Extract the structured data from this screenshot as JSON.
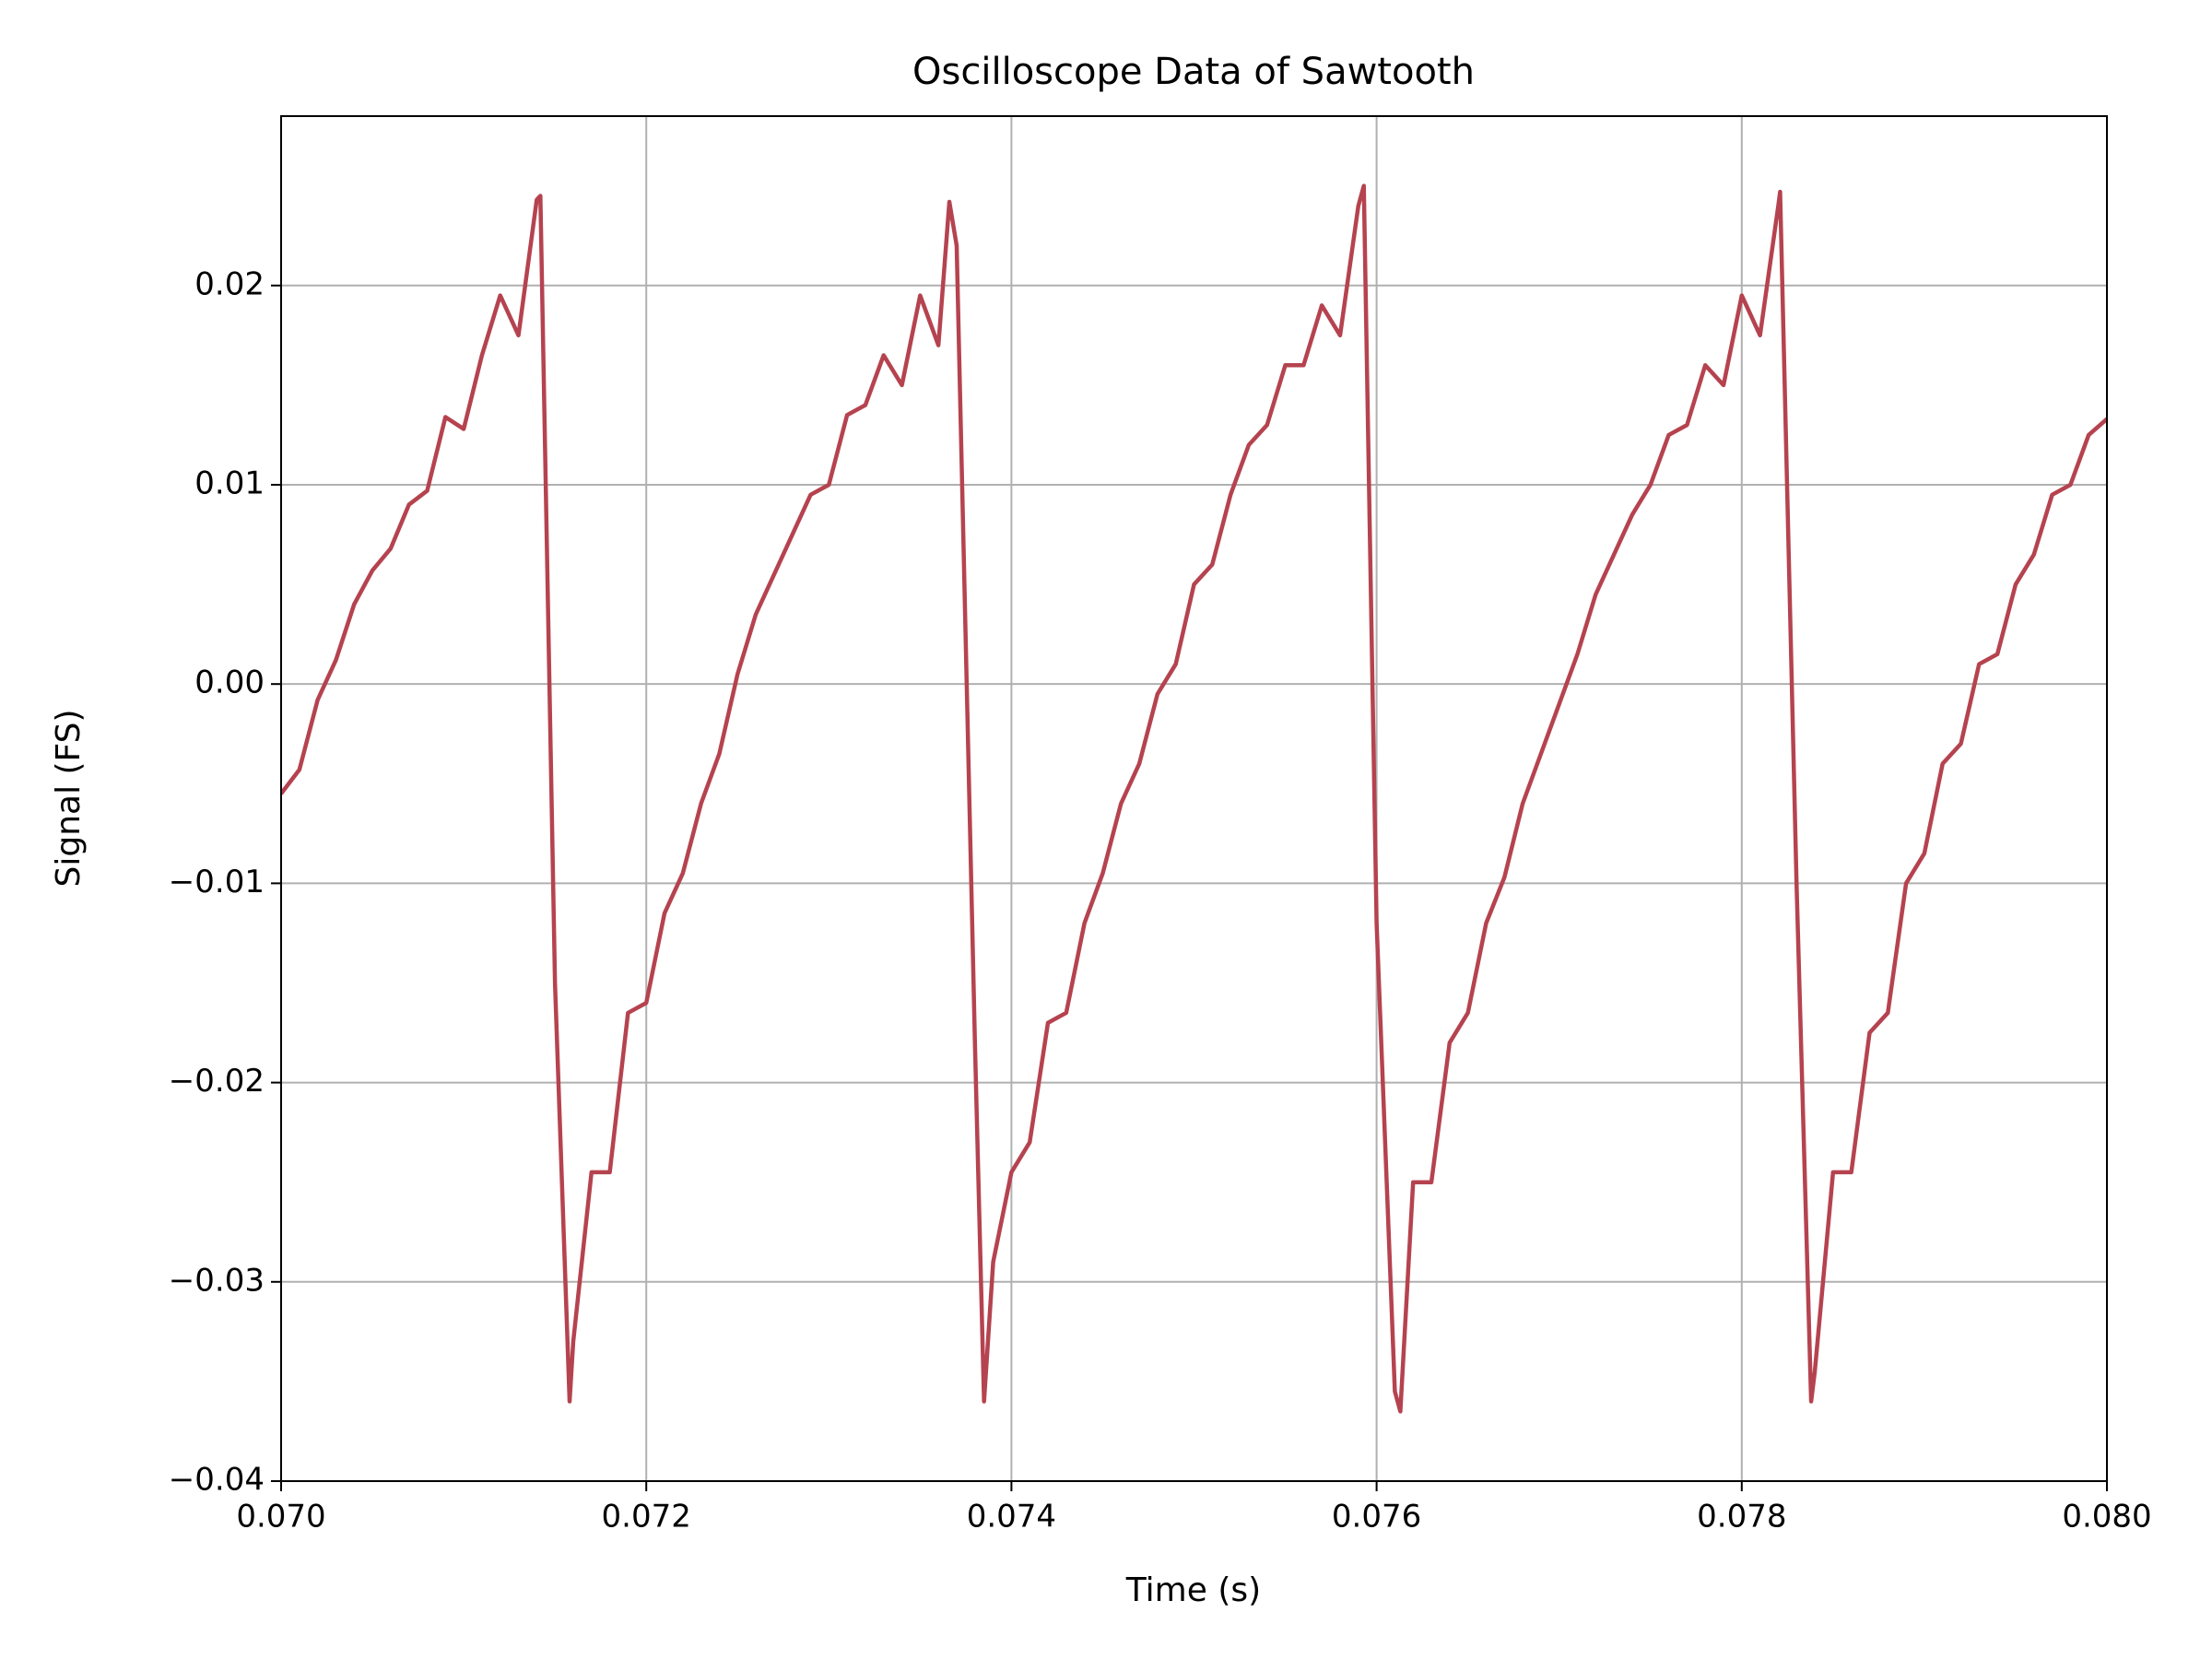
{
  "chart_data": {
    "type": "line",
    "title": "Oscilloscope Data of Sawtooth",
    "x_label": "Time (s)",
    "y_label": "Signal (FS)",
    "color": "#b5434f",
    "grid": true,
    "xlim": [
      0.07,
      0.08
    ],
    "ylim": [
      -0.04,
      0.0285
    ],
    "xticks": [
      {
        "value": 0.07,
        "label": "0.070"
      },
      0.072,
      0.074,
      0.076,
      0.078,
      {
        "value": 0.08,
        "label": "0.080"
      }
    ],
    "yticks": [
      {
        "value": -0.04,
        "label": "−0.04"
      },
      {
        "value": -0.03,
        "label": "−0.03"
      },
      {
        "value": -0.02,
        "label": "−0.02"
      },
      {
        "value": -0.01,
        "label": "−0.01"
      },
      {
        "value": 0,
        "label": "0.00"
      },
      0.01,
      0.02
    ],
    "x": [
      0.07,
      0.0701,
      0.0702,
      0.0703,
      0.0704,
      0.0705,
      0.0706,
      0.0707,
      0.0708,
      0.0709,
      0.071,
      0.0711,
      0.0712,
      0.0713,
      0.0714,
      0.07142,
      0.0715,
      0.07158,
      0.0716,
      0.0717,
      0.0718,
      0.0719,
      0.072,
      0.0721,
      0.0722,
      0.0723,
      0.0724,
      0.0725,
      0.0726,
      0.0727,
      0.0728,
      0.0729,
      0.073,
      0.0731,
      0.0732,
      0.0733,
      0.0734,
      0.0735,
      0.0736,
      0.07366,
      0.0737,
      0.0738,
      0.07385,
      0.0739,
      0.074,
      0.0741,
      0.0742,
      0.0743,
      0.0744,
      0.0745,
      0.0746,
      0.0747,
      0.0748,
      0.0749,
      0.075,
      0.0751,
      0.0752,
      0.0753,
      0.0754,
      0.0755,
      0.0756,
      0.0757,
      0.0758,
      0.0759,
      0.07593,
      0.076,
      0.0761,
      0.07613,
      0.0762,
      0.0763,
      0.0764,
      0.0765,
      0.0766,
      0.0767,
      0.0768,
      0.0769,
      0.077,
      0.0771,
      0.0772,
      0.0773,
      0.0774,
      0.0775,
      0.0776,
      0.0777,
      0.0778,
      0.0779,
      0.078,
      0.0781,
      0.0782,
      0.07821,
      0.0783,
      0.07838,
      0.0784,
      0.0785,
      0.0786,
      0.0787,
      0.0788,
      0.0789,
      0.079,
      0.0791,
      0.0792,
      0.0793,
      0.0794,
      0.0795,
      0.0796,
      0.0797,
      0.0798,
      0.0799,
      0.08
    ],
    "values": [
      -0.0055,
      -0.0043,
      -0.0008,
      0.0012,
      0.004,
      0.0057,
      0.0068,
      0.009,
      0.0097,
      0.0134,
      0.0128,
      0.0165,
      0.0195,
      0.0175,
      0.0243,
      0.0245,
      -0.015,
      -0.036,
      -0.033,
      -0.0245,
      -0.0245,
      -0.0165,
      -0.016,
      -0.0115,
      -0.0095,
      -0.006,
      -0.0035,
      0.0005,
      0.0035,
      0.0055,
      0.0075,
      0.0095,
      0.01,
      0.0135,
      0.014,
      0.0165,
      0.015,
      0.0195,
      0.017,
      0.0242,
      0.022,
      -0.018,
      -0.036,
      -0.029,
      -0.0245,
      -0.023,
      -0.017,
      -0.0165,
      -0.012,
      -0.0095,
      -0.006,
      -0.004,
      -0.0005,
      0.001,
      0.005,
      0.006,
      0.0095,
      0.012,
      0.013,
      0.016,
      0.016,
      0.019,
      0.0175,
      0.024,
      0.025,
      -0.012,
      -0.0355,
      -0.0365,
      -0.025,
      -0.025,
      -0.018,
      -0.0165,
      -0.012,
      -0.0097,
      -0.006,
      -0.0035,
      -0.001,
      0.0015,
      0.0045,
      0.0065,
      0.0085,
      0.01,
      0.0125,
      0.013,
      0.016,
      0.015,
      0.0195,
      0.0175,
      0.024,
      0.0247,
      -0.01,
      -0.036,
      -0.0345,
      -0.0245,
      -0.0245,
      -0.0175,
      -0.0165,
      -0.01,
      -0.0085,
      -0.004,
      -0.003,
      0.001,
      0.0015,
      0.005,
      0.0065,
      0.0095,
      0.01,
      0.0125,
      0.0133
    ]
  }
}
